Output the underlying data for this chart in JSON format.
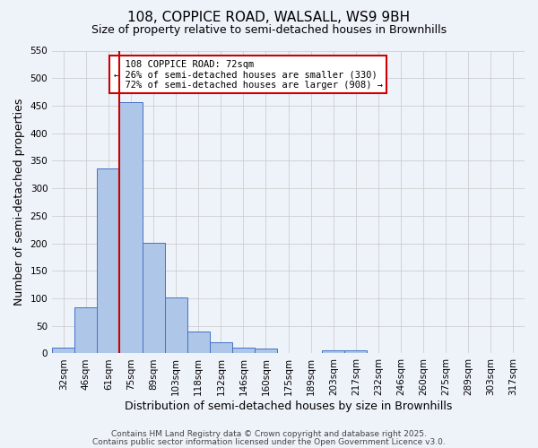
{
  "title": "108, COPPICE ROAD, WALSALL, WS9 9BH",
  "subtitle": "Size of property relative to semi-detached houses in Brownhills",
  "xlabel": "Distribution of semi-detached houses by size in Brownhills",
  "ylabel": "Number of semi-detached properties",
  "footnote1": "Contains HM Land Registry data © Crown copyright and database right 2025.",
  "footnote2": "Contains public sector information licensed under the Open Government Licence v3.0.",
  "categories": [
    "32sqm",
    "46sqm",
    "61sqm",
    "75sqm",
    "89sqm",
    "103sqm",
    "118sqm",
    "132sqm",
    "146sqm",
    "160sqm",
    "175sqm",
    "189sqm",
    "203sqm",
    "217sqm",
    "232sqm",
    "246sqm",
    "260sqm",
    "275sqm",
    "289sqm",
    "303sqm",
    "317sqm"
  ],
  "values": [
    10,
    83,
    336,
    457,
    201,
    101,
    39,
    20,
    10,
    9,
    0,
    0,
    5,
    5,
    0,
    0,
    0,
    0,
    0,
    0,
    0
  ],
  "bar_color": "#aec6e8",
  "bar_edge_color": "#4472c4",
  "ylim": [
    0,
    550
  ],
  "yticks": [
    0,
    50,
    100,
    150,
    200,
    250,
    300,
    350,
    400,
    450,
    500,
    550
  ],
  "property_label": "108 COPPICE ROAD: 72sqm",
  "pct_smaller": 26,
  "pct_smaller_count": 330,
  "pct_larger": 72,
  "pct_larger_count": 908,
  "vline_x": 2.5,
  "annotation_box_color": "#cc0000",
  "background_color": "#eef2f9",
  "grid_color": "#c8c8c8",
  "title_fontsize": 11,
  "subtitle_fontsize": 9,
  "axis_label_fontsize": 9,
  "tick_fontsize": 7.5,
  "annotation_fontsize": 7.5,
  "footnote_fontsize": 6.5
}
